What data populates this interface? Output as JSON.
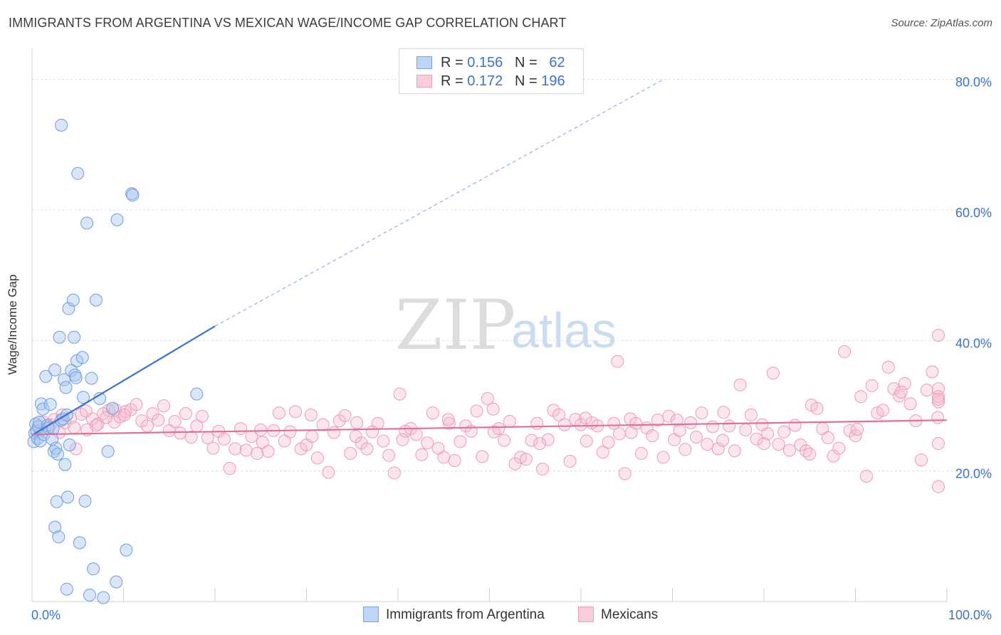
{
  "header": {
    "title": "IMMIGRANTS FROM ARGENTINA VS MEXICAN WAGE/INCOME GAP CORRELATION CHART",
    "source": "Source: ZipAtlas.com"
  },
  "legend": {
    "rows": [
      {
        "r_label": "R =",
        "r_value": "0.156",
        "n_label": "N =",
        "n_value": "62",
        "color": "#a8c8f0"
      },
      {
        "r_label": "R =",
        "r_value": "0.172",
        "n_label": "N =",
        "n_value": "196",
        "color": "#f5b8cb"
      }
    ]
  },
  "bottom_legend": {
    "argentina": "Immigrants from Argentina",
    "mexicans": "Mexicans"
  },
  "watermark": {
    "zip": "ZIP",
    "atlas": "atlas"
  },
  "chart_data": {
    "type": "scatter",
    "title": "IMMIGRANTS FROM ARGENTINA VS MEXICAN WAGE/INCOME GAP CORRELATION CHART",
    "xlabel": "",
    "ylabel": "Wage/Income Gap",
    "xlim": [
      0,
      100
    ],
    "ylim": [
      0,
      84
    ],
    "x_tick_labels": [
      "0.0%",
      "100.0%"
    ],
    "y_ticks": [
      20,
      40,
      60,
      80
    ],
    "y_tick_labels": [
      "20.0%",
      "40.0%",
      "60.0%",
      "80.0%"
    ],
    "grid": true,
    "legend_position": "top-center",
    "colors": {
      "argentina": "#3a72d0",
      "argentina_fill": "#a8c8f0",
      "mexicans": "#e0709a",
      "mexicans_fill": "#f5b8cb",
      "tick_label": "#3a72d0"
    },
    "series": [
      {
        "name": "Immigrants from Argentina",
        "trend": {
          "x": [
            0,
            20
          ],
          "y": [
            25.5,
            42.2
          ],
          "dashed_extension_to": [
            69,
            80
          ]
        },
        "points": [
          [
            0.2,
            24.5
          ],
          [
            0.3,
            25.8
          ],
          [
            0.4,
            27.2
          ],
          [
            0.5,
            26.1
          ],
          [
            0.6,
            25.0
          ],
          [
            0.7,
            26.8
          ],
          [
            0.8,
            27.5
          ],
          [
            0.9,
            24.6
          ],
          [
            1.0,
            30.3
          ],
          [
            1.2,
            29.5
          ],
          [
            1.3,
            25.6
          ],
          [
            1.5,
            34.5
          ],
          [
            1.7,
            27.0
          ],
          [
            1.8,
            26.6
          ],
          [
            2.0,
            30.2
          ],
          [
            2.2,
            24.9
          ],
          [
            2.3,
            26.5
          ],
          [
            2.4,
            23.0
          ],
          [
            2.5,
            35.5
          ],
          [
            2.6,
            23.5
          ],
          [
            2.7,
            15.3
          ],
          [
            2.8,
            22.6
          ],
          [
            3.0,
            40.5
          ],
          [
            3.2,
            27.8
          ],
          [
            3.4,
            28.0
          ],
          [
            3.5,
            34.0
          ],
          [
            3.6,
            21.0
          ],
          [
            3.7,
            32.8
          ],
          [
            3.8,
            28.6
          ],
          [
            3.9,
            16.0
          ],
          [
            4.0,
            44.9
          ],
          [
            4.1,
            24.0
          ],
          [
            4.3,
            35.4
          ],
          [
            4.5,
            46.2
          ],
          [
            4.6,
            40.5
          ],
          [
            4.7,
            34.7
          ],
          [
            4.8,
            34.3
          ],
          [
            4.9,
            36.9
          ],
          [
            5.0,
            65.6
          ],
          [
            5.2,
            9.0
          ],
          [
            5.5,
            37.4
          ],
          [
            5.6,
            31.3
          ],
          [
            5.8,
            15.4
          ],
          [
            6.0,
            58.0
          ],
          [
            6.3,
            1.0
          ],
          [
            6.5,
            34.2
          ],
          [
            6.7,
            5.0
          ],
          [
            7.0,
            46.2
          ],
          [
            7.4,
            31.1
          ],
          [
            7.8,
            0.6
          ],
          [
            8.3,
            23.0
          ],
          [
            8.8,
            29.6
          ],
          [
            9.2,
            3.0
          ],
          [
            9.3,
            58.5
          ],
          [
            10.3,
            7.9
          ],
          [
            10.9,
            62.5
          ],
          [
            11.0,
            62.3
          ],
          [
            2.5,
            11.4
          ],
          [
            2.9,
            9.9
          ],
          [
            3.2,
            73.0
          ],
          [
            3.8,
            1.9
          ],
          [
            18.0,
            31.8
          ]
        ]
      },
      {
        "name": "Mexicans",
        "trend": {
          "x": [
            0,
            100
          ],
          "y": [
            25.6,
            27.8
          ]
        },
        "points": [
          [
            1.2,
            27.5
          ],
          [
            1.8,
            26.8
          ],
          [
            2.4,
            27.9
          ],
          [
            3.0,
            25.9
          ],
          [
            3.6,
            27.4
          ],
          [
            4.2,
            28.1
          ],
          [
            4.8,
            23.4
          ],
          [
            5.4,
            28.7
          ],
          [
            6.0,
            26.3
          ],
          [
            6.6,
            28.0
          ],
          [
            7.2,
            27.2
          ],
          [
            7.8,
            28.8
          ],
          [
            8.4,
            29.3
          ],
          [
            9.0,
            27.5
          ],
          [
            9.6,
            28.3
          ],
          [
            10.2,
            29.1
          ],
          [
            10.8,
            29.4
          ],
          [
            11.4,
            30.2
          ],
          [
            12.0,
            27.7
          ],
          [
            12.6,
            26.9
          ],
          [
            13.2,
            28.8
          ],
          [
            13.8,
            27.8
          ],
          [
            14.4,
            30.0
          ],
          [
            15.0,
            26.2
          ],
          [
            15.6,
            27.6
          ],
          [
            16.2,
            25.8
          ],
          [
            16.8,
            28.8
          ],
          [
            17.4,
            25.2
          ],
          [
            18.0,
            26.9
          ],
          [
            18.6,
            28.4
          ],
          [
            19.2,
            25.1
          ],
          [
            19.8,
            23.5
          ],
          [
            20.4,
            26.1
          ],
          [
            21.0,
            24.9
          ],
          [
            21.6,
            20.4
          ],
          [
            22.2,
            23.4
          ],
          [
            22.8,
            26.5
          ],
          [
            23.4,
            23.2
          ],
          [
            24.0,
            25.3
          ],
          [
            24.6,
            22.7
          ],
          [
            25.2,
            24.4
          ],
          [
            25.8,
            23.0
          ],
          [
            26.4,
            26.2
          ],
          [
            27.0,
            28.9
          ],
          [
            27.6,
            24.6
          ],
          [
            28.2,
            26.0
          ],
          [
            28.8,
            29.1
          ],
          [
            29.4,
            23.4
          ],
          [
            30.0,
            24.0
          ],
          [
            30.6,
            25.3
          ],
          [
            31.2,
            22.0
          ],
          [
            31.8,
            27.1
          ],
          [
            32.4,
            19.8
          ],
          [
            33.0,
            25.9
          ],
          [
            33.6,
            27.7
          ],
          [
            34.2,
            28.5
          ],
          [
            34.8,
            22.7
          ],
          [
            35.4,
            25.3
          ],
          [
            36.0,
            24.3
          ],
          [
            36.6,
            23.4
          ],
          [
            37.2,
            26.0
          ],
          [
            37.8,
            27.3
          ],
          [
            38.4,
            24.6
          ],
          [
            39.0,
            22.4
          ],
          [
            39.6,
            19.7
          ],
          [
            40.2,
            31.8
          ],
          [
            40.8,
            26.1
          ],
          [
            41.4,
            26.5
          ],
          [
            42.0,
            25.6
          ],
          [
            42.6,
            22.5
          ],
          [
            43.2,
            24.3
          ],
          [
            43.8,
            28.9
          ],
          [
            44.4,
            23.5
          ],
          [
            45.0,
            22.1
          ],
          [
            45.6,
            27.3
          ],
          [
            46.2,
            21.6
          ],
          [
            46.8,
            24.5
          ],
          [
            47.4,
            26.9
          ],
          [
            48.0,
            26.1
          ],
          [
            48.6,
            29.2
          ],
          [
            49.2,
            22.2
          ],
          [
            49.8,
            31.1
          ],
          [
            50.4,
            29.5
          ],
          [
            51.0,
            26.5
          ],
          [
            51.6,
            24.7
          ],
          [
            52.2,
            27.6
          ],
          [
            52.8,
            21.1
          ],
          [
            53.4,
            22.1
          ],
          [
            54.0,
            21.8
          ],
          [
            54.6,
            24.7
          ],
          [
            55.2,
            27.3
          ],
          [
            55.8,
            20.3
          ],
          [
            56.4,
            24.8
          ],
          [
            57.0,
            29.3
          ],
          [
            57.6,
            28.6
          ],
          [
            58.2,
            27.1
          ],
          [
            58.8,
            21.5
          ],
          [
            59.4,
            27.9
          ],
          [
            60.0,
            27.1
          ],
          [
            60.6,
            24.6
          ],
          [
            61.2,
            27.4
          ],
          [
            61.8,
            26.9
          ],
          [
            62.4,
            22.9
          ],
          [
            63.0,
            24.4
          ],
          [
            63.6,
            27.3
          ],
          [
            64.2,
            25.7
          ],
          [
            64.8,
            19.6
          ],
          [
            65.4,
            28.0
          ],
          [
            66.0,
            27.3
          ],
          [
            66.6,
            22.7
          ],
          [
            67.2,
            26.6
          ],
          [
            67.8,
            25.4
          ],
          [
            68.4,
            27.8
          ],
          [
            69.0,
            22.1
          ],
          [
            69.6,
            28.4
          ],
          [
            70.2,
            24.8
          ],
          [
            70.8,
            26.2
          ],
          [
            71.4,
            23.3
          ],
          [
            72.0,
            27.4
          ],
          [
            72.6,
            25.2
          ],
          [
            73.2,
            28.9
          ],
          [
            73.8,
            24.1
          ],
          [
            74.4,
            26.8
          ],
          [
            75.0,
            23.4
          ],
          [
            75.6,
            29.0
          ],
          [
            76.2,
            26.9
          ],
          [
            76.8,
            23.1
          ],
          [
            77.4,
            33.2
          ],
          [
            78.0,
            26.3
          ],
          [
            78.6,
            28.6
          ],
          [
            79.2,
            24.9
          ],
          [
            79.8,
            27.1
          ],
          [
            80.4,
            25.7
          ],
          [
            81.0,
            35.0
          ],
          [
            81.6,
            24.1
          ],
          [
            82.2,
            26.0
          ],
          [
            82.8,
            23.2
          ],
          [
            83.4,
            27.0
          ],
          [
            84.0,
            24.0
          ],
          [
            84.6,
            23.1
          ],
          [
            85.2,
            30.1
          ],
          [
            85.8,
            29.6
          ],
          [
            86.4,
            26.5
          ],
          [
            87.0,
            25.1
          ],
          [
            87.6,
            22.3
          ],
          [
            88.2,
            23.5
          ],
          [
            88.8,
            38.3
          ],
          [
            89.4,
            26.2
          ],
          [
            90.0,
            25.4
          ],
          [
            90.6,
            31.4
          ],
          [
            91.2,
            19.2
          ],
          [
            91.8,
            33.1
          ],
          [
            92.4,
            28.9
          ],
          [
            93.0,
            29.3
          ],
          [
            93.6,
            35.9
          ],
          [
            94.2,
            32.6
          ],
          [
            94.8,
            31.5
          ],
          [
            95.4,
            33.4
          ],
          [
            96.0,
            30.3
          ],
          [
            96.6,
            27.7
          ],
          [
            97.2,
            21.7
          ],
          [
            97.8,
            32.4
          ],
          [
            98.4,
            35.2
          ],
          [
            99.0,
            28.2
          ],
          [
            99.6,
            24.2
          ],
          [
            100.2,
            32.6
          ],
          [
            100.8,
            30.6
          ],
          [
            101.4,
            31.4
          ],
          [
            102.0,
            40.8
          ],
          [
            102.6,
            17.6
          ],
          [
            64.0,
            36.8
          ],
          [
            80.0,
            24.2
          ],
          [
            85.0,
            22.6
          ],
          [
            90.2,
            26.4
          ],
          [
            95.0,
            32.1
          ],
          [
            99.8,
            31.0
          ],
          [
            25.0,
            26.3
          ],
          [
            30.5,
            28.6
          ],
          [
            35.5,
            27.4
          ],
          [
            40.5,
            24.8
          ],
          [
            45.5,
            27.9
          ],
          [
            50.5,
            26.0
          ],
          [
            55.5,
            24.2
          ],
          [
            60.5,
            28.1
          ],
          [
            65.5,
            25.9
          ],
          [
            70.5,
            27.8
          ],
          [
            75.5,
            24.7
          ],
          [
            1.0,
            26.3
          ],
          [
            2.0,
            27.1
          ],
          [
            3.3,
            28.6
          ],
          [
            4.6,
            26.7
          ],
          [
            5.9,
            29.2
          ],
          [
            7.0,
            27.0
          ],
          [
            8.1,
            28.2
          ],
          [
            9.1,
            29.4
          ],
          [
            10.1,
            28.6
          ]
        ]
      }
    ]
  }
}
